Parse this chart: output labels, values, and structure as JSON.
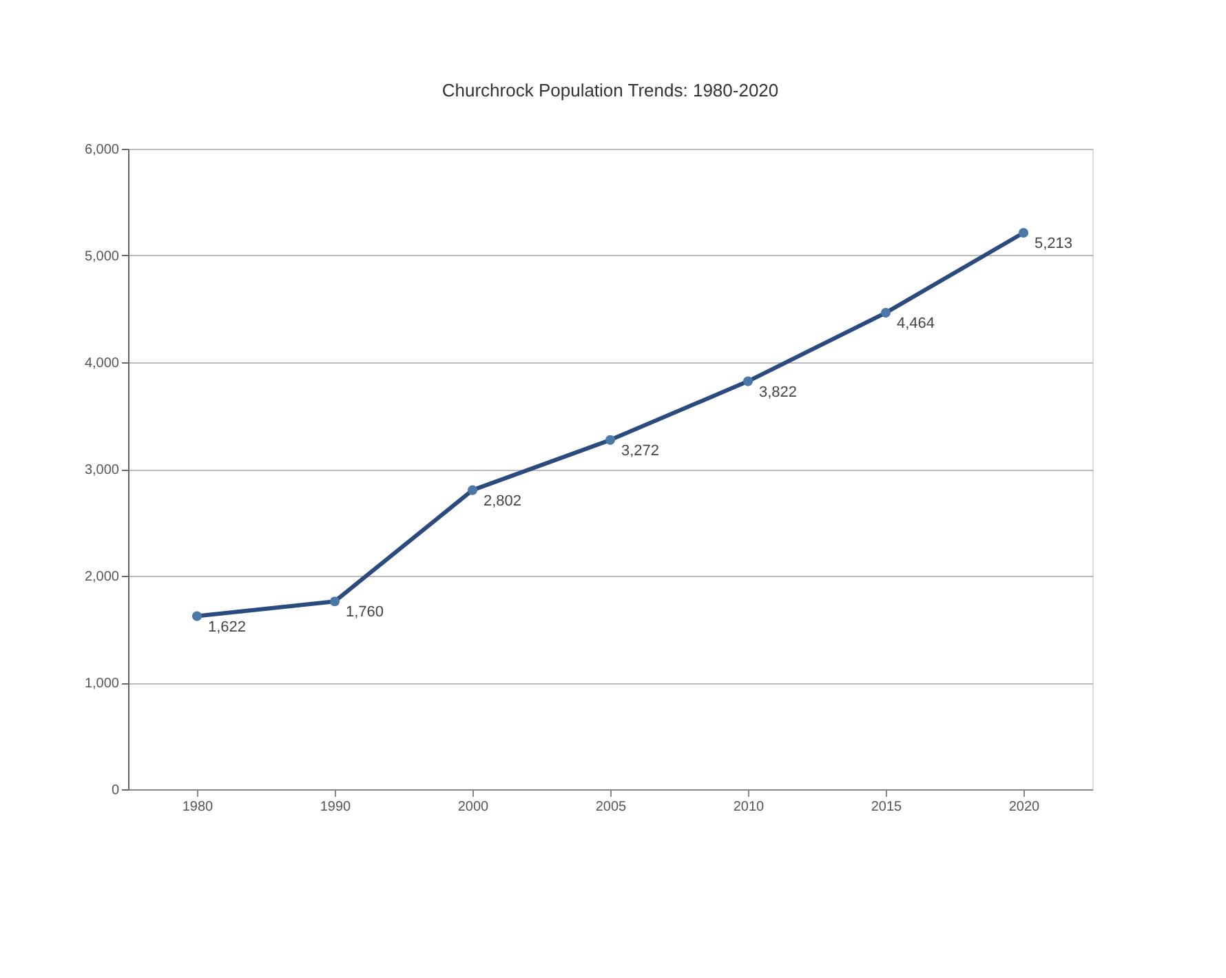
{
  "chart_data": {
    "type": "line",
    "title": "Churchrock Population Trends: 1980-2020",
    "categories": [
      "1980",
      "1990",
      "2000",
      "2005",
      "2010",
      "2015",
      "2020"
    ],
    "series": [
      {
        "color": "#2b4a7e",
        "values": [
          1622,
          1760,
          2802,
          3272,
          3822,
          4464,
          5213
        ]
      }
    ],
    "value_labels": [
      "1,622",
      "1,760",
      "2,802",
      "3,272",
      "3,822",
      "4,464",
      "5,213"
    ],
    "ylim": [
      0,
      6000
    ],
    "yticks": [
      {
        "value": 0,
        "label": "0"
      },
      {
        "value": 1000,
        "label": "1,000"
      },
      {
        "value": 2000,
        "label": "2,000"
      },
      {
        "value": 3000,
        "label": "3,000"
      },
      {
        "value": 4000,
        "label": "4,000"
      },
      {
        "value": 5000,
        "label": "5,000"
      },
      {
        "value": 6000,
        "label": "6,000"
      }
    ],
    "grid": "y",
    "marker": "circle",
    "line_style": "solid"
  }
}
